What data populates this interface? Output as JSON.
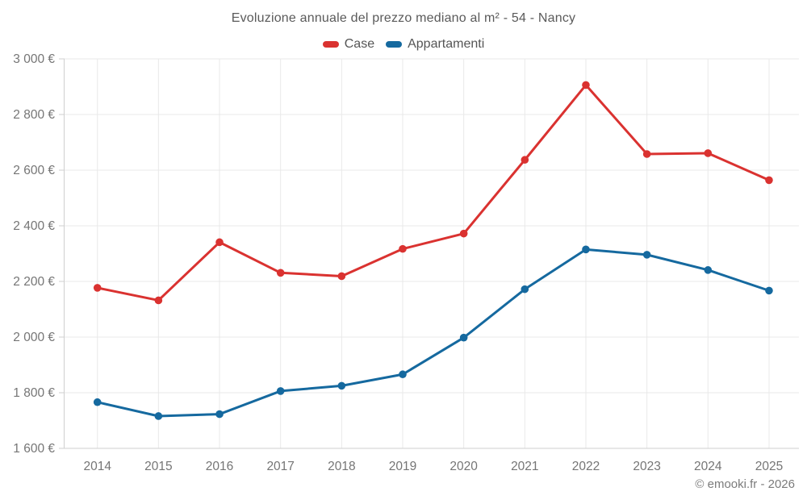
{
  "header": {
    "title": "Evoluzione annuale del prezzo mediano al m² - 54 - Nancy"
  },
  "legend": [
    {
      "label": "Case",
      "color": "#da3230"
    },
    {
      "label": "Appartamenti",
      "color": "#15699f"
    }
  ],
  "footer": {
    "credit": "© emooki.fr - 2026"
  },
  "colors": {
    "background": "#ffffff",
    "grid": "#e9e9e9",
    "axis": "#cfcfcf",
    "axis_text": "#757575",
    "title_text": "#5a5a5a",
    "series_case": "#da3230",
    "series_appartamenti": "#15699f"
  },
  "chart_data": {
    "type": "line",
    "title": "Evoluzione annuale del prezzo mediano al m² - 54 - Nancy",
    "xlabel": "",
    "ylabel": "",
    "categories": [
      "2014",
      "2015",
      "2016",
      "2017",
      "2018",
      "2019",
      "2020",
      "2021",
      "2022",
      "2023",
      "2024",
      "2025"
    ],
    "series": [
      {
        "name": "Case",
        "color": "#da3230",
        "values": [
          2177,
          2132,
          2341,
          2231,
          2219,
          2317,
          2372,
          2637,
          2906,
          2658,
          2661,
          2564
        ]
      },
      {
        "name": "Appartamenti",
        "color": "#15699f",
        "values": [
          1766,
          1716,
          1723,
          1806,
          1825,
          1866,
          1998,
          2172,
          2315,
          2296,
          2241,
          2167
        ]
      }
    ],
    "ylim": [
      1600,
      3000
    ],
    "ytick_step": 200,
    "yticks": [
      {
        "value": 1600,
        "label": "1 600 €"
      },
      {
        "value": 1800,
        "label": "1 800 €"
      },
      {
        "value": 2000,
        "label": "2 000 €"
      },
      {
        "value": 2200,
        "label": "2 200 €"
      },
      {
        "value": 2400,
        "label": "2 400 €"
      },
      {
        "value": 2600,
        "label": "2 600 €"
      },
      {
        "value": 2800,
        "label": "2 800 €"
      },
      {
        "value": 3000,
        "label": "3 000 €"
      }
    ],
    "grid": true,
    "legend_position": "top"
  }
}
